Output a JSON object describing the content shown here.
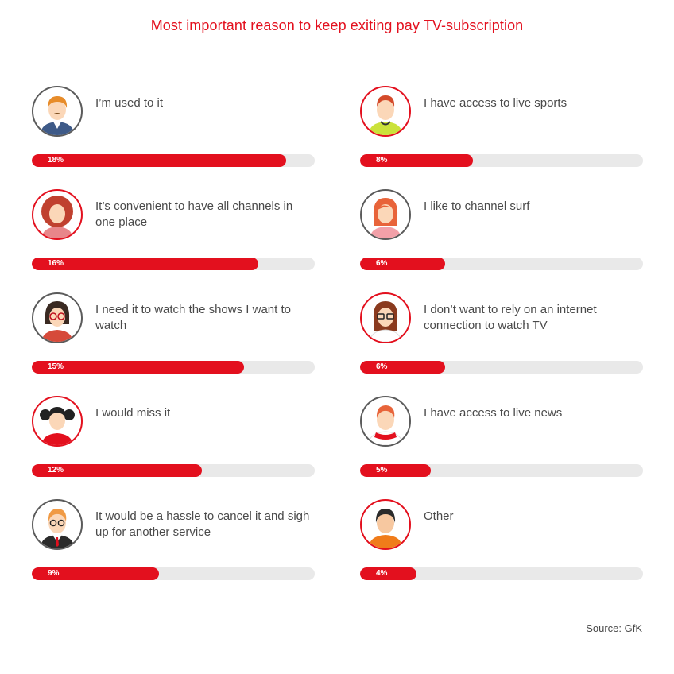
{
  "title": "Most important reason to keep exiting pay TV-subscription",
  "source": "Source: GfK",
  "chart_data": {
    "type": "bar",
    "title": "Most important reason to keep exiting pay TV-subscription",
    "unit": "%",
    "scale_max": 20,
    "items": [
      {
        "label": "I’m used to it",
        "value": 18,
        "value_label": "18%",
        "icon": "man-mustache-icon",
        "ring": "gray"
      },
      {
        "label": "I have access to live sports",
        "value": 8,
        "value_label": "8%",
        "icon": "sporty-man-icon",
        "ring": "red"
      },
      {
        "label": "It’s convenient to have all channels in one place",
        "value": 16,
        "value_label": "16%",
        "icon": "curly-woman-icon",
        "ring": "red"
      },
      {
        "label": "I like to channel surf",
        "value": 6,
        "value_label": "6%",
        "icon": "redhead-woman-icon",
        "ring": "gray"
      },
      {
        "label": "I need it to watch the shows I want to watch",
        "value": 15,
        "value_label": "15%",
        "icon": "woman-glasses-icon",
        "ring": "gray"
      },
      {
        "label": "I don’t want to rely on an internet connection to watch TV",
        "value": 6,
        "value_label": "6%",
        "icon": "brunette-glasses-icon",
        "ring": "red"
      },
      {
        "label": "I would miss it",
        "value": 12,
        "value_label": "12%",
        "icon": "girl-pigtails-icon",
        "ring": "red"
      },
      {
        "label": "I have access to live news",
        "value": 5,
        "value_label": "5%",
        "icon": "man-scarf-icon",
        "ring": "gray"
      },
      {
        "label": "It would be a hassle to cancel it and sigh up for another service",
        "value": 9,
        "value_label": "9%",
        "icon": "businessman-icon",
        "ring": "gray"
      },
      {
        "label": "Other",
        "value": 4,
        "value_label": "4%",
        "icon": "person-icon",
        "ring": "red"
      }
    ]
  },
  "colors": {
    "accent": "#e3101e",
    "track": "#e9e9e9",
    "text": "#4a4a4a",
    "ring_gray": "#5b5b5b"
  }
}
